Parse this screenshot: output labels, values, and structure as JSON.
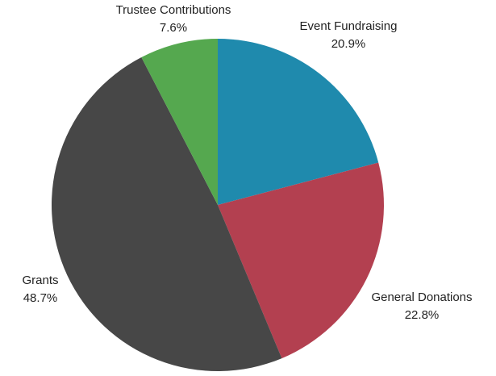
{
  "chart_data": {
    "type": "pie",
    "categories": [
      "Event Fundraising",
      "General Donations",
      "Grants",
      "Trustee Contributions"
    ],
    "values": [
      20.9,
      22.8,
      48.7,
      7.6
    ],
    "value_labels": [
      "20.9%",
      "22.8%",
      "48.7%",
      "7.6%"
    ],
    "colors": [
      "#1f8aad",
      "#b34050",
      "#474747",
      "#55a84f"
    ]
  }
}
